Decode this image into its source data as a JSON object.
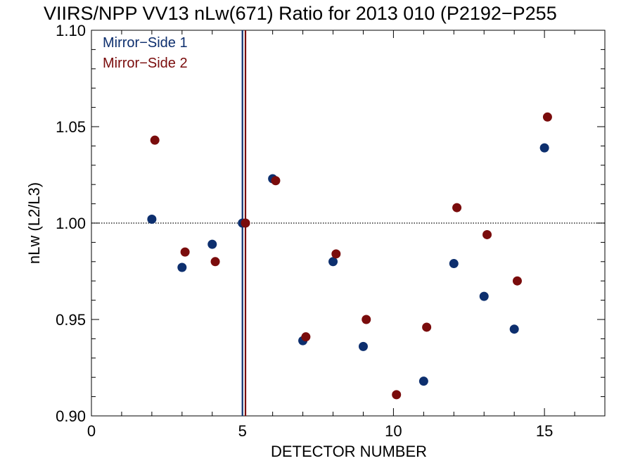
{
  "chart_data": {
    "type": "scatter",
    "title": "VIIRS/NPP VV13 nLw(671) Ratio for 2013 010 (P2192−P255",
    "xlabel": "DETECTOR NUMBER",
    "ylabel": "nLw (L2/L3)",
    "xlim": [
      0,
      17
    ],
    "ylim": [
      0.9,
      1.1
    ],
    "xticks": [
      0,
      5,
      10,
      15
    ],
    "xtick_labels": [
      "0",
      "5",
      "10",
      "15"
    ],
    "yticks": [
      0.9,
      0.95,
      1.0,
      1.05,
      1.1
    ],
    "ytick_labels": [
      "0.90",
      "0.95",
      "1.00",
      "1.05",
      "1.10"
    ],
    "reference_line_y": 1.0,
    "vertical_lines": [
      {
        "x": 5.0,
        "color": "#0d2f6e"
      },
      {
        "x": 5.1,
        "color": "#7a0c0c"
      }
    ],
    "legend_position": "top-left",
    "grid": false,
    "series": [
      {
        "name": "Mirror−Side 1",
        "color": "#0d2f6e",
        "x": [
          2,
          3,
          4,
          5,
          6,
          7,
          8,
          9,
          11,
          12,
          13,
          14,
          15
        ],
        "y": [
          1.002,
          0.977,
          0.989,
          1.0,
          1.023,
          0.939,
          0.98,
          0.936,
          0.918,
          0.979,
          0.962,
          0.945,
          1.039
        ]
      },
      {
        "name": "Mirror−Side 2",
        "color": "#7a0c0c",
        "x": [
          2.1,
          3.1,
          4.1,
          5.1,
          6.1,
          7.1,
          8.1,
          9.1,
          10.1,
          11.1,
          12.1,
          13.1,
          14.1,
          15.1
        ],
        "y": [
          1.043,
          0.985,
          0.98,
          1.0,
          1.022,
          0.941,
          0.984,
          0.95,
          0.911,
          0.946,
          1.008,
          0.994,
          0.97,
          1.055
        ]
      }
    ]
  }
}
